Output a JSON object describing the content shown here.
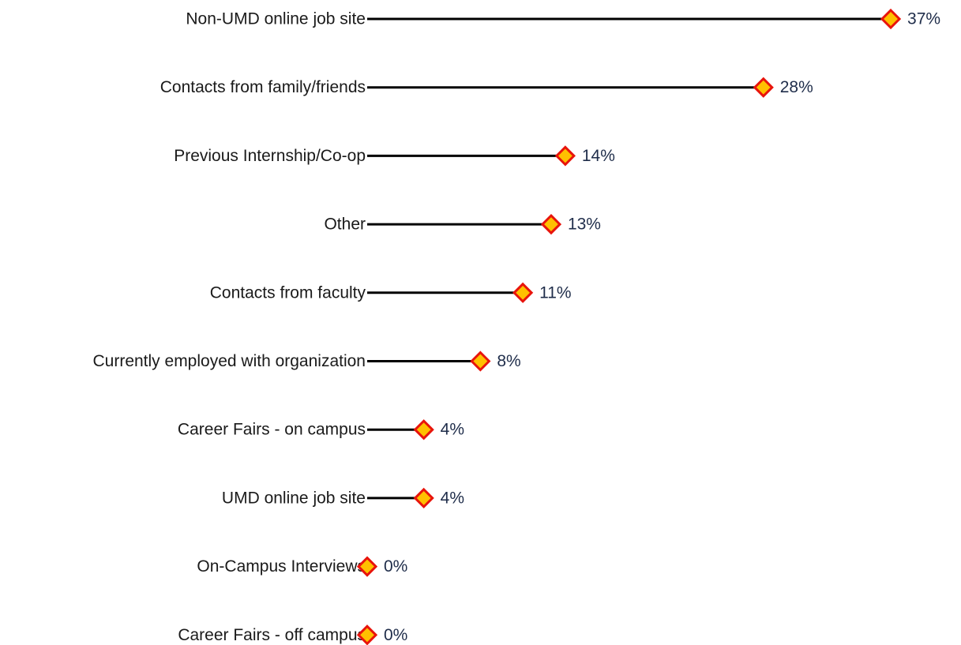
{
  "chart_data": {
    "type": "lollipop",
    "categories": [
      "Non-UMD online job site",
      "Contacts from family/friends",
      "Previous Internship/Co-op",
      "Other",
      "Contacts from faculty",
      "Currently employed with organization",
      "Career Fairs - on campus",
      "UMD online job site",
      "On-Campus Interviews",
      "Career Fairs - off campus"
    ],
    "values": [
      37,
      28,
      14,
      13,
      11,
      8,
      4,
      4,
      0,
      0
    ],
    "value_labels": [
      "37%",
      "28%",
      "14%",
      "13%",
      "11%",
      "8%",
      "4%",
      "4%",
      "0%",
      "0%"
    ],
    "line_color": "#000000",
    "marker_color": "#ffc000",
    "marker_edge_color": "#e8140c"
  }
}
